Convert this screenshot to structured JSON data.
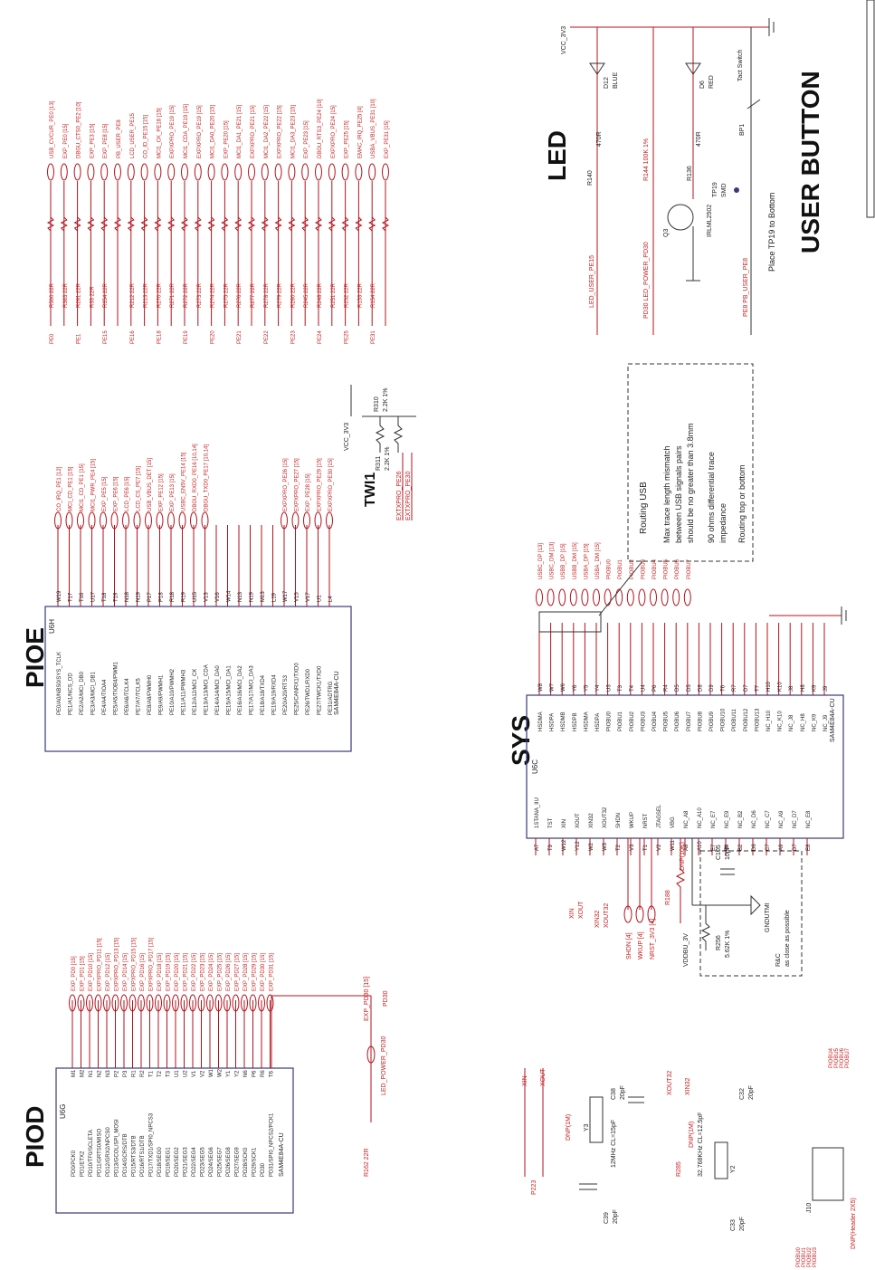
{
  "sections": {
    "piod": "PIOD",
    "pioe": "PIOE",
    "sys": "SYS",
    "led": "LED",
    "user_button": "USER BUTTON",
    "twi1": "TWI1"
  },
  "parts": {
    "u6g": {
      "ref": "U6G",
      "part": "SAM4E84A-CU"
    },
    "u6h": {
      "ref": "U6H",
      "part": "SAM4E84A-CU"
    },
    "u6c": {
      "ref": "U6C",
      "part": "SAM4E84A-CU"
    },
    "y3": {
      "ref": "Y3",
      "desc": "12MHz CL=15pF"
    },
    "y2": {
      "ref": "Y2",
      "desc": "32.768KHz CL=12.5pF"
    },
    "c38": {
      "ref": "C38",
      "val": "20pF"
    },
    "c39": {
      "ref": "C39",
      "val": "20pF"
    },
    "c32": {
      "ref": "C32",
      "val": "20pF"
    },
    "c33": {
      "ref": "C33",
      "val": "20pF"
    },
    "c105": {
      "ref": "C105",
      "val": "10pF"
    },
    "r256": {
      "ref": "R256",
      "val": "5.62K 1%"
    },
    "r188": {
      "ref": "R188",
      "val": "DNP(10K)"
    },
    "j10": {
      "ref": "J10",
      "desc": "DNP(Header 2X5)"
    },
    "q3": {
      "ref": "Q3",
      "part": "IRLML2502"
    },
    "d12": {
      "ref": "D12",
      "color": "BLUE"
    },
    "d6": {
      "ref": "D6",
      "color": "RED"
    },
    "r140": {
      "ref": "R140",
      "val": "470R"
    },
    "r136": {
      "ref": "R136",
      "val": "470R"
    },
    "bp1": {
      "ref": "BP1",
      "desc": "Tact Switch"
    },
    "tp19": {
      "ref": "TP19",
      "desc": "SMD"
    },
    "r310": {
      "ref": "R310",
      "val": "2.2K 1%"
    },
    "r311": {
      "ref": "R311",
      "val": "2.2K 1%"
    }
  },
  "power": {
    "vcc_3v3": "VCC_3V3"
  },
  "piod_pins": [
    {
      "pin": "M1",
      "name": "PD0/PCK0",
      "net": "EXP_PD0 [15]"
    },
    {
      "pin": "M2",
      "name": "PD1/ETX2",
      "net": "EXP_PD1 [15]"
    },
    {
      "pin": "N1",
      "name": "PD10/TF0/SCLETA",
      "net": "EXP_PD10 [15]"
    },
    {
      "pin": "N2",
      "name": "PD11/GRTS0/MISO",
      "net": "EXPXPRO_PD11 [15]"
    },
    {
      "pin": "N3",
      "name": "PD12/GRX2/NPCS0",
      "net": "EXP_PD12 [15]"
    },
    {
      "pin": "P2",
      "name": "PD13/GCOL/SPI_MOSI",
      "net": "EXPXPRO_PD13 [15]"
    },
    {
      "pin": "P3",
      "name": "PD14/GCRS/DTB",
      "net": "EXP_PD14 [15]"
    },
    {
      "pin": "R1",
      "name": "PD15/RTS3/DTB",
      "net": "EXPXPRO_PD15 [15]"
    },
    {
      "pin": "R2",
      "name": "PD16/RTS1/DTB",
      "net": "EXP_PD16 [15]"
    },
    {
      "pin": "T1",
      "name": "PD17/TXD1/SPI0_NPCS3",
      "net": "EXPXPRO_PD17 [15]"
    },
    {
      "pin": "T2",
      "name": "PD18/SEG0",
      "net": "EXP_PD18 [15]"
    },
    {
      "pin": "T3",
      "name": "PD19/SEG1",
      "net": "EXP_PD19 [15]"
    },
    {
      "pin": "U1",
      "name": "PD20/SEG2",
      "net": "EXP_PD20 [15]"
    },
    {
      "pin": "U2",
      "name": "PD21/SEG3",
      "net": "EXP_PD21 [15]"
    },
    {
      "pin": "V1",
      "name": "PD22/SEG4",
      "net": "EXP_PD22 [15]"
    },
    {
      "pin": "V2",
      "name": "PD23/SEG5",
      "net": "EXP_PD23 [15]"
    },
    {
      "pin": "W1",
      "name": "PD24/SEG6",
      "net": "EXP_PD24 [15]"
    },
    {
      "pin": "W2",
      "name": "PD25/SEG7",
      "net": "EXP_PD25 [15]"
    },
    {
      "pin": "Y1",
      "name": "PD26/SEG8",
      "net": "EXP_PD26 [15]"
    },
    {
      "pin": "Y2",
      "name": "PD27/SEG9",
      "net": "EXP_PD27 [15]"
    },
    {
      "pin": "N6",
      "name": "PD28/SCK0",
      "net": "EXP_PD28 [15]"
    },
    {
      "pin": "P6",
      "name": "PD29/SCK1",
      "net": "EXP_PD29 [15]"
    },
    {
      "pin": "R6",
      "name": "PD30",
      "net": "EXP_PD30 [15]"
    },
    {
      "pin": "T6",
      "name": "PD31/SPI0_NPCS2/PCK1",
      "net": "EXP_PD31 [15]"
    }
  ],
  "piod_extra": {
    "r162": "R162 22R",
    "led_power": "LED_POWER_PD30",
    "exp_pd30": "EXP_PD30 [15]",
    "pd30": "PD30"
  },
  "pioe_pins": [
    {
      "pin": "W19",
      "name": "PE0/A0/NBS0/SYS_TCLK",
      "net": "CO_IRQ_PE1 [12]"
    },
    {
      "pin": "T17",
      "name": "PE1/A1/NCS_DD",
      "net": "MCI_CD_PE1 [15]"
    },
    {
      "pin": "T16",
      "name": "PE2/A2/MCI_DB0",
      "net": "MCI1_CD_PE1 [15]"
    },
    {
      "pin": "U17",
      "name": "PE3/A3/MCI_DB1",
      "net": "MCI1_PWR_PE4 [15]"
    },
    {
      "pin": "T18",
      "name": "PE4/A4/TIOA4",
      "net": "EXP_PE5 [15]"
    },
    {
      "pin": "T19",
      "name": "PE5/A5/TIOB4/PWM1",
      "net": "EXP_PE6 [15]"
    },
    {
      "pin": "N18",
      "name": "PE6/A6/TCLK4",
      "net": "LCD_PE6 [15]"
    },
    {
      "pin": "N19",
      "name": "PE7/A7/TCLK5",
      "net": "LCD_CS_PE7 [15]"
    },
    {
      "pin": "P17",
      "name": "PE8/A8/PWMH0",
      "net": "USB_VBUS_DET [15]"
    },
    {
      "pin": "P18",
      "name": "PE9/A9/PWMH1",
      "net": "EXP_PE12 [15]"
    },
    {
      "pin": "R18",
      "name": "PE10/A10/PWMH2",
      "net": "EXP_PE13 [15]"
    },
    {
      "pin": "R19",
      "name": "PE11/A11/PWMH3",
      "net": "USBC_EN5V_PE14 [15]"
    },
    {
      "pin": "U15",
      "name": "PE12/A12/MCI_CK",
      "net": "DBGU_RXD0_PE16 [10,14]"
    },
    {
      "pin": "V13",
      "name": "PE13/A13/MCI_CDA",
      "net": "DBGU_TXD0_PE17 [10,14]"
    },
    {
      "pin": "V16",
      "name": "PE14/A14/MCI_DA0",
      "net": ""
    },
    {
      "pin": "W14",
      "name": "PE15/A15/MCI_DA1",
      "net": ""
    },
    {
      "pin": "N13",
      "name": "PE16/A16/MCI_DA2",
      "net": ""
    },
    {
      "pin": "N19",
      "name": "PE17/A17/MCI_DA3",
      "net": ""
    },
    {
      "pin": "M13",
      "name": "PE18/A18/TXD4",
      "net": ""
    },
    {
      "pin": "L19",
      "name": "PE19/A19/RXD4",
      "net": ""
    },
    {
      "pin": "W17",
      "name": "PE20/A20/RTS3",
      "net": "EXPXPRO_PE26 [15]"
    },
    {
      "pin": "V15",
      "name": "PE25/CANRX1/TXD0",
      "net": "EXPXPRO_PE27 [15]"
    },
    {
      "pin": "V17",
      "name": "PE26/TWD1/RXD0",
      "net": "EXP_PE28 [15]"
    },
    {
      "pin": "U1",
      "name": "PE27/TWCK1/TXD0",
      "net": "EXPXPRO_PE29 [15]"
    },
    {
      "pin": "L4",
      "name": "PE31/ADTRG",
      "net": "EXPXPRO_PE30 [15]"
    }
  ],
  "pioe_right": [
    {
      "net": "USB_CVCUR_PE0 [13]",
      "r": "R500 22R"
    },
    {
      "net": "EXP_PE0 [15]",
      "r": "R363 22R"
    },
    {
      "net": "DBGU_CTS0_PE2 [10]",
      "r": "R281 22R"
    },
    {
      "net": "EXP_PE3 [15]",
      "r": "R33 22R"
    },
    {
      "net": "EXP_PE8 [15]",
      "r": "R354 22R"
    },
    {
      "net": "PB_USER_PE8",
      "r": ""
    },
    {
      "net": "LCD_USER_PE15",
      "r": "R212 22R"
    },
    {
      "net": "CO_ID_PE15 [15]",
      "r": "R213 22R"
    },
    {
      "net": "MCI1_CK_PE18 [15]",
      "r": "R270 22R"
    },
    {
      "net": "EXPXPRO_PE19 [15]",
      "r": "R271 22R"
    },
    {
      "net": "MCI1_CDA_PE19 [15]",
      "r": "R272 22R"
    },
    {
      "net": "EXPXPRO_PE19 [15]",
      "r": "R273 22R"
    },
    {
      "net": "MCI1_DA0_PE20 [15]",
      "r": "R274 22R"
    },
    {
      "net": "EXP_PE20 [15]",
      "r": "R275 22R"
    },
    {
      "net": "MCI1_DA1_PE21 [15]",
      "r": "R276 22R"
    },
    {
      "net": "EXPXPRO_PE21 [15]",
      "r": "R277 22R"
    },
    {
      "net": "MCI1_DA2_PE22 [15]",
      "r": "R278 22R"
    },
    {
      "net": "EXPXPRO_PE22 [15]",
      "r": "R279 22R"
    },
    {
      "net": "MCI1_DA3_PE23 [15]",
      "r": "R280 22R"
    },
    {
      "net": "EXP_PE23 [15]",
      "r": "R245 22R"
    },
    {
      "net": "DBGU_RTS3_PE24 [10]",
      "r": "R248 22R"
    },
    {
      "net": "EXPXPRO_PE24 [15]",
      "r": "R251 22R"
    },
    {
      "net": "EXP_PE25 [15]",
      "r": "R252 22R"
    },
    {
      "net": "EMAC_IRQ_PE25 [4]",
      "r": "R153 22R"
    },
    {
      "net": "USBA_VBUS_PE31 [10]",
      "r": "R154 22R"
    },
    {
      "net": "EXP_PE31 [15]",
      "r": ""
    }
  ],
  "pioe_left_nets": [
    "PE0",
    "PE1",
    "PE15",
    "PE16",
    "PE18",
    "PE19",
    "PE20",
    "PE21",
    "PE22",
    "PE23",
    "PE24",
    "PE25",
    "PE31"
  ],
  "twi": {
    "pe26": "EXTXPRO_PE26",
    "pe27": "EXTXPRO_PE30"
  },
  "sys_left": [
    {
      "pin": "A7",
      "name": "1STANA_IIU"
    },
    {
      "pin": "T9",
      "name": "TST"
    },
    {
      "pin": "W12",
      "name": "XIN"
    },
    {
      "pin": "Y12",
      "name": "XOUT"
    },
    {
      "pin": "W2",
      "name": "XIN32"
    },
    {
      "pin": "W3",
      "name": "XOUT32"
    },
    {
      "pin": "T2",
      "name": "SHDN"
    },
    {
      "pin": "V3",
      "name": "WKUP"
    },
    {
      "pin": "T1",
      "name": "NRST"
    },
    {
      "pin": "V2",
      "name": "JTAGSEL"
    },
    {
      "pin": "W11",
      "name": "VBG"
    },
    {
      "pin": "A8",
      "name": "NC_A8"
    },
    {
      "pin": "A10",
      "name": "NC_A10"
    },
    {
      "pin": "E7",
      "name": "NC_E7"
    },
    {
      "pin": "E9",
      "name": "NC_E9"
    },
    {
      "pin": "B2",
      "name": "NC_B2"
    },
    {
      "pin": "D6",
      "name": "NC_D6"
    },
    {
      "pin": "C7",
      "name": "NC_C7"
    },
    {
      "pin": "A9",
      "name": "NC_A9"
    },
    {
      "pin": "D7",
      "name": "NC_D7"
    },
    {
      "pin": "E8",
      "name": "NC_E8"
    }
  ],
  "sys_right": [
    {
      "pin": "W8",
      "name": "HSDMA",
      "net": "USBC_DP [13]"
    },
    {
      "pin": "W7",
      "name": "HSDPA",
      "net": "USBC_DM [13]"
    },
    {
      "pin": "W6",
      "name": "HSDMB",
      "net": "USBB_DP [15]"
    },
    {
      "pin": "Y6",
      "name": "HSDPB",
      "net": "USBB_DM [15]"
    },
    {
      "pin": "Y5",
      "name": "HSDMA",
      "net": "USBA_DP [15]"
    },
    {
      "pin": "Y4",
      "name": "HSDPA",
      "net": "USBA_DM [15]"
    },
    {
      "pin": "U3",
      "name": "PIOBU0",
      "net": "PIOBU0"
    },
    {
      "pin": "T3",
      "name": "PIOBU1",
      "net": "PIOBU1"
    },
    {
      "pin": "T4",
      "name": "PIOBU2",
      "net": "PIOBU2"
    },
    {
      "pin": "U4",
      "name": "PIOBU3",
      "net": "PIOBU3"
    },
    {
      "pin": "P6",
      "name": "PIOBU4",
      "net": "PIOBU4"
    },
    {
      "pin": "R4",
      "name": "PIOBU5",
      "net": "PIOBU5"
    },
    {
      "pin": "D5",
      "name": "PIOBU6",
      "net": "PIOBU6"
    },
    {
      "pin": "D5",
      "name": "PIOBU7",
      "net": "PIOBU7"
    },
    {
      "pin": "D8",
      "name": "PIOBU8",
      "net": ""
    },
    {
      "pin": "D9",
      "name": "PIOBU9",
      "net": ""
    },
    {
      "pin": "T6",
      "name": "PIOBU10",
      "net": ""
    },
    {
      "pin": "R7",
      "name": "PIOBU11",
      "net": ""
    },
    {
      "pin": "D7",
      "name": "PIOBU12",
      "net": ""
    },
    {
      "pin": "T7",
      "name": "PIOBU13",
      "net": ""
    },
    {
      "pin": "H10",
      "name": "NC_H10",
      "net": ""
    },
    {
      "pin": "K10",
      "name": "NC_K10",
      "net": ""
    },
    {
      "pin": "J8",
      "name": "NC_J8",
      "net": ""
    },
    {
      "pin": "H8",
      "name": "NC_H8",
      "net": ""
    },
    {
      "pin": "K9",
      "name": "NC_K9",
      "net": ""
    },
    {
      "pin": "J9",
      "name": "NC_J9",
      "net": ""
    }
  ],
  "sys_nets": {
    "xin": "XIN",
    "xout": "XOUT",
    "xin32": "XIN32",
    "xout32": "XOUT32",
    "shdn": "SHDN [4]",
    "wkup": "WKUP [4]",
    "nrst": "NRST_3V3 [4]",
    "vddbu": "VDDBU_3V",
    "gndutmi": "GNDUTMI",
    "note": "R&C",
    "note2": "as close as possible"
  },
  "routing_usb": {
    "title": "Routing USB",
    "lines": [
      "Max trace length mismatch",
      "between USB signals pairs",
      "should be no greater than 3.8mm",
      "90 ohms differential trace",
      "impedance",
      "Routing top or bottom"
    ]
  },
  "led_nets": {
    "led_user": "LED_USER_PE15",
    "led_power": "PD30 LED_POWER_PD30",
    "r144": "R144 100K 1%",
    "pb_user": "PE8 PB_USER_PE8",
    "tp_note": "Place TP19 to Bottom"
  },
  "xtal_nets": {
    "xin": "XIN",
    "xout": "XOUT",
    "p223": "P223",
    "dnp1m": "DNP(1M)",
    "xout32": "XOUT32",
    "xin32": "XIN32",
    "r285": "R285",
    "dnp1m_2": "DNP(1M)"
  },
  "j10_nets": [
    "PIOBU0",
    "PIOBU1",
    "PIOBU2",
    "PIOBU3",
    "PIOBU4",
    "PIOBU5",
    "PIOBU6",
    "PIOBU7"
  ]
}
